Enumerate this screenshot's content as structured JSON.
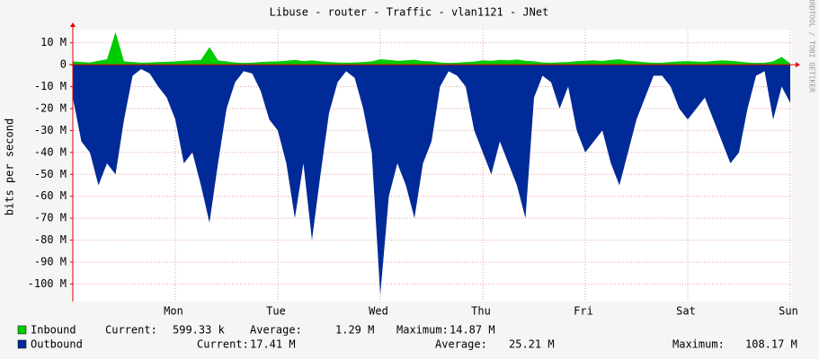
{
  "chart_data": {
    "type": "area",
    "title": "Libuse - router - Traffic - vlan1121 - JNet",
    "ylabel": "bits per second",
    "side_text": "RRDTOOL / TOBI OETIKER",
    "categories": [
      null,
      null,
      null,
      null,
      null,
      null,
      null,
      null,
      null,
      null,
      null,
      null,
      "Mon",
      null,
      null,
      null,
      null,
      null,
      null,
      null,
      null,
      null,
      null,
      null,
      "Tue",
      null,
      null,
      null,
      null,
      null,
      null,
      null,
      null,
      null,
      null,
      null,
      "Wed",
      null,
      null,
      null,
      null,
      null,
      null,
      null,
      null,
      null,
      null,
      null,
      "Thu",
      null,
      null,
      null,
      null,
      null,
      null,
      null,
      null,
      null,
      null,
      null,
      "Fri",
      null,
      null,
      null,
      null,
      null,
      null,
      null,
      null,
      null,
      null,
      null,
      "Sat",
      null,
      null,
      null,
      null,
      null,
      null,
      null,
      null,
      null,
      null,
      null,
      "Sun"
    ],
    "series": [
      {
        "name": "Inbound",
        "color": "#00cc00",
        "stats": [
          "Current:",
          "599.33 k",
          "Average:",
          "1.29 M",
          "Maximum:",
          "14.87 M"
        ],
        "values": [
          1500000,
          1200000,
          1000000,
          1800000,
          2500000,
          14870000,
          1500000,
          1200000,
          900000,
          1000000,
          1200000,
          1300000,
          1500000,
          1800000,
          2000000,
          2200000,
          8000000,
          2000000,
          1500000,
          1000000,
          800000,
          900000,
          1200000,
          1400000,
          1500000,
          1800000,
          2200000,
          1600000,
          2000000,
          1500000,
          1200000,
          1000000,
          900000,
          1000000,
          1200000,
          1500000,
          2500000,
          2200000,
          1800000,
          2000000,
          2300000,
          1600000,
          1500000,
          1000000,
          800000,
          900000,
          1200000,
          1400000,
          2000000,
          1800000,
          2200000,
          2000000,
          2400000,
          1800000,
          1500000,
          1000000,
          900000,
          1100000,
          1200000,
          1600000,
          1800000,
          2000000,
          1700000,
          2200000,
          2500000,
          1800000,
          1500000,
          1100000,
          900000,
          900000,
          1200000,
          1500000,
          1600000,
          1400000,
          1300000,
          1700000,
          2000000,
          1800000,
          1400000,
          1000000,
          800000,
          900000,
          1500000,
          3500000,
          599330
        ]
      },
      {
        "name": "Outbound",
        "color": "#002a97",
        "stats": [
          "Current:",
          "17.41 M",
          "Average:",
          "25.21 M",
          "Maximum:",
          "108.17 M"
        ],
        "values": [
          -15000000,
          -35000000,
          -40000000,
          -55000000,
          -45000000,
          -50000000,
          -25000000,
          -5000000,
          -2000000,
          -4000000,
          -10000000,
          -15000000,
          -25000000,
          -45000000,
          -40000000,
          -55000000,
          -72000000,
          -45000000,
          -20000000,
          -8000000,
          -3000000,
          -4000000,
          -12000000,
          -25000000,
          -30000000,
          -45000000,
          -70000000,
          -45000000,
          -80000000,
          -50000000,
          -22000000,
          -8000000,
          -3000000,
          -6000000,
          -20000000,
          -40000000,
          -105000000,
          -60000000,
          -45000000,
          -55000000,
          -70000000,
          -45000000,
          -35000000,
          -10000000,
          -3000000,
          -5000000,
          -10000000,
          -30000000,
          -40000000,
          -50000000,
          -35000000,
          -45000000,
          -55000000,
          -70000000,
          -15000000,
          -5000000,
          -8000000,
          -20000000,
          -10000000,
          -30000000,
          -40000000,
          -35000000,
          -30000000,
          -45000000,
          -55000000,
          -40000000,
          -25000000,
          -15000000,
          -5000000,
          -5000000,
          -10000000,
          -20000000,
          -25000000,
          -20000000,
          -15000000,
          -25000000,
          -35000000,
          -45000000,
          -40000000,
          -20000000,
          -5000000,
          -3000000,
          -25000000,
          -10000000,
          -17410000
        ]
      }
    ],
    "ylim": [
      -108000000,
      16000000
    ],
    "yticks": [
      {
        "value": 10000000,
        "label": "10 M"
      },
      0,
      {
        "value": -10000000,
        "label": "-10 M"
      },
      {
        "value": -20000000,
        "label": "-20 M"
      },
      {
        "value": -30000000,
        "label": "-30 M"
      },
      {
        "value": -40000000,
        "label": "-40 M"
      },
      {
        "value": -50000000,
        "label": "-50 M"
      },
      {
        "value": -60000000,
        "label": "-60 M"
      },
      {
        "value": -70000000,
        "label": "-70 M"
      },
      {
        "value": -80000000,
        "label": "-80 M"
      },
      {
        "value": -90000000,
        "label": "-90 M"
      },
      {
        "value": -100000000,
        "label": "-100 M"
      }
    ],
    "grid": true
  }
}
